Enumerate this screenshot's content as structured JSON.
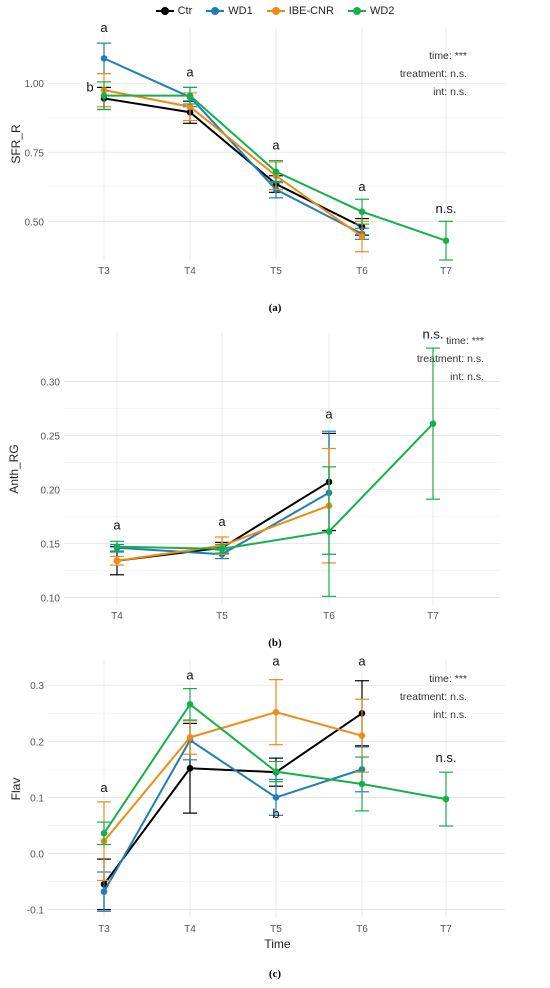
{
  "legend": {
    "items": [
      {
        "label": "Ctr",
        "color": "#000000"
      },
      {
        "label": "WD1",
        "color": "#1f7fb5"
      },
      {
        "label": "IBE-CNR",
        "color": "#ef8a17"
      },
      {
        "label": "WD2",
        "color": "#16b04a"
      }
    ]
  },
  "chart_data": [
    {
      "type": "line",
      "panel": "(a)",
      "ylabel": "SFR_R",
      "xlabel": "",
      "categories": [
        "T3",
        "T4",
        "T5",
        "T6",
        "T7"
      ],
      "yticks": [
        "0.50",
        "0.75",
        "1.00"
      ],
      "ytick_values": [
        0.5,
        0.75,
        1.0
      ],
      "ylim": [
        0.36,
        1.2
      ],
      "stats": [
        "time: ***",
        "treatment: n.s.",
        "int: n.s."
      ],
      "letters": [
        {
          "x": "T3",
          "y": 1.185,
          "text": "a"
        },
        {
          "x": "T3",
          "y": 0.97,
          "text": "b",
          "side": "left"
        },
        {
          "x": "T4",
          "y": 1.025,
          "text": "a"
        },
        {
          "x": "T5",
          "y": 0.76,
          "text": "a"
        },
        {
          "x": "T6",
          "y": 0.61,
          "text": "a"
        },
        {
          "x": "T7",
          "y": 0.53,
          "text": "n.s."
        }
      ],
      "series": [
        {
          "name": "Ctr",
          "color": "#000000",
          "x": [
            "T3",
            "T4",
            "T5",
            "T6"
          ],
          "values": [
            0.945,
            0.895,
            0.635,
            0.48
          ],
          "err": [
            0.04,
            0.04,
            0.03,
            0.03
          ]
        },
        {
          "name": "WD1",
          "color": "#1f7fb5",
          "x": [
            "T3",
            "T4",
            "T5",
            "T6"
          ],
          "values": [
            1.09,
            0.95,
            0.615,
            0.455
          ],
          "err": [
            0.055,
            0.035,
            0.03,
            0.02
          ]
        },
        {
          "name": "IBE-CNR",
          "color": "#ef8a17",
          "x": [
            "T3",
            "T4",
            "T5",
            "T6"
          ],
          "values": [
            0.975,
            0.915,
            0.665,
            0.445
          ],
          "err": [
            0.06,
            0.05,
            0.05,
            0.055
          ]
        },
        {
          "name": "WD2",
          "color": "#16b04a",
          "x": [
            "T3",
            "T4",
            "T5",
            "T6",
            "T7"
          ],
          "values": [
            0.955,
            0.955,
            0.68,
            0.535,
            0.43
          ],
          "err": [
            0.05,
            0.03,
            0.04,
            0.045,
            0.07
          ]
        }
      ]
    },
    {
      "type": "line",
      "panel": "(b)",
      "ylabel": "Anth_RG",
      "xlabel": "",
      "categories": [
        "T4",
        "T5",
        "T6",
        "T7"
      ],
      "yticks": [
        "0.10",
        "0.15",
        "0.20",
        "0.25",
        "0.30"
      ],
      "ytick_values": [
        0.1,
        0.15,
        0.2,
        0.25,
        0.3
      ],
      "ylim": [
        0.093,
        0.345
      ],
      "stats": [
        "time: ***",
        "treatment: n.s.",
        "int: n.s."
      ],
      "letters": [
        {
          "x": "T4",
          "y": 0.163,
          "text": "a"
        },
        {
          "x": "T5",
          "y": 0.166,
          "text": "a"
        },
        {
          "x": "T6",
          "y": 0.266,
          "text": "a"
        },
        {
          "x": "T7",
          "y": 0.34,
          "text": "n.s."
        }
      ],
      "series": [
        {
          "name": "Ctr",
          "color": "#000000",
          "x": [
            "T4",
            "T5",
            "T6"
          ],
          "values": [
            0.134,
            0.146,
            0.207
          ],
          "err": [
            0.013,
            0.005,
            0.045
          ]
        },
        {
          "name": "WD1",
          "color": "#1f7fb5",
          "x": [
            "T4",
            "T5",
            "T6"
          ],
          "values": [
            0.146,
            0.14,
            0.197
          ],
          "err": [
            0.003,
            0.004,
            0.057
          ]
        },
        {
          "name": "IBE-CNR",
          "color": "#ef8a17",
          "x": [
            "T4",
            "T5",
            "T6"
          ],
          "values": [
            0.134,
            0.148,
            0.185
          ],
          "err": [
            0.004,
            0.008,
            0.053
          ]
        },
        {
          "name": "WD2",
          "color": "#16b04a",
          "x": [
            "T4",
            "T5",
            "T6",
            "T7"
          ],
          "values": [
            0.147,
            0.145,
            0.161,
            0.261
          ],
          "err": [
            0.005,
            0.004,
            0.06,
            0.07
          ]
        }
      ]
    },
    {
      "type": "line",
      "panel": "(c)",
      "ylabel": "Flav",
      "xlabel": "Time",
      "categories": [
        "T3",
        "T4",
        "T5",
        "T6",
        "T7"
      ],
      "yticks": [
        "-0.1",
        "0.0",
        "0.1",
        "0.2",
        "0.3"
      ],
      "ytick_values": [
        -0.1,
        0.0,
        0.1,
        0.2,
        0.3
      ],
      "ylim": [
        -0.115,
        0.345
      ],
      "stats": [
        "time: ***",
        "treatment: n.s.",
        "int: n.s."
      ],
      "letters": [
        {
          "x": "T3",
          "y": 0.11,
          "text": "a"
        },
        {
          "x": "T4",
          "y": 0.31,
          "text": "a"
        },
        {
          "x": "T5",
          "y": 0.335,
          "text": "a"
        },
        {
          "x": "T5",
          "y": 0.063,
          "text": "b"
        },
        {
          "x": "T6",
          "y": 0.335,
          "text": "a"
        },
        {
          "x": "T7",
          "y": 0.163,
          "text": "n.s."
        }
      ],
      "series": [
        {
          "name": "Ctr",
          "color": "#000000",
          "x": [
            "T3",
            "T4",
            "T5",
            "T6"
          ],
          "values": [
            -0.055,
            0.152,
            0.145,
            0.25
          ],
          "err": [
            0.045,
            0.08,
            0.025,
            0.058
          ]
        },
        {
          "name": "WD1",
          "color": "#1f7fb5",
          "x": [
            "T3",
            "T4",
            "T5",
            "T6"
          ],
          "values": [
            -0.068,
            0.202,
            0.1,
            0.15
          ],
          "err": [
            0.035,
            0.035,
            0.032,
            0.04
          ]
        },
        {
          "name": "IBE-CNR",
          "color": "#ef8a17",
          "x": [
            "T3",
            "T4",
            "T5",
            "T6"
          ],
          "values": [
            0.022,
            0.207,
            0.252,
            0.21
          ],
          "err": [
            0.07,
            0.03,
            0.058,
            0.065
          ]
        },
        {
          "name": "WD2",
          "color": "#16b04a",
          "x": [
            "T3",
            "T4",
            "T5",
            "T6",
            "T7"
          ],
          "values": [
            0.036,
            0.266,
            0.146,
            0.124,
            0.097
          ],
          "err": [
            0.02,
            0.028,
            0.018,
            0.048,
            0.048
          ]
        }
      ]
    }
  ],
  "captions": [
    "(a)",
    "(b)",
    "(c)"
  ]
}
